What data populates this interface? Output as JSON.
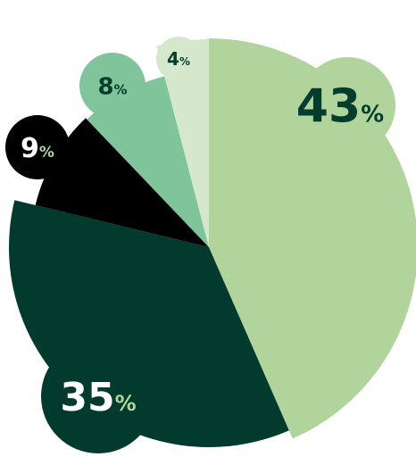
{
  "chart_data": {
    "type": "pie",
    "title": "",
    "slices": [
      {
        "value": 43,
        "label_number": "43",
        "label_unit": "%",
        "color": "#b0d49c",
        "label_color": "#063c2c",
        "unit_color": "#063c2c"
      },
      {
        "value": 35,
        "label_number": "35",
        "label_unit": "%",
        "color": "#033a2e",
        "label_color": "#ffffff",
        "unit_color": "#b0d49c"
      },
      {
        "value": 9,
        "label_number": "9",
        "label_unit": "%",
        "color": "#000000",
        "label_color": "#ffffff",
        "unit_color": "#b0d49c"
      },
      {
        "value": 8,
        "label_number": "8",
        "label_unit": "%",
        "color": "#80c49c",
        "label_color": "#063c2c",
        "unit_color": "#063c2c"
      },
      {
        "value": 4,
        "label_number": "4",
        "label_unit": "%",
        "color": "#d5e8cc",
        "label_color": "#063c2c",
        "unit_color": "#063c2c"
      }
    ]
  }
}
